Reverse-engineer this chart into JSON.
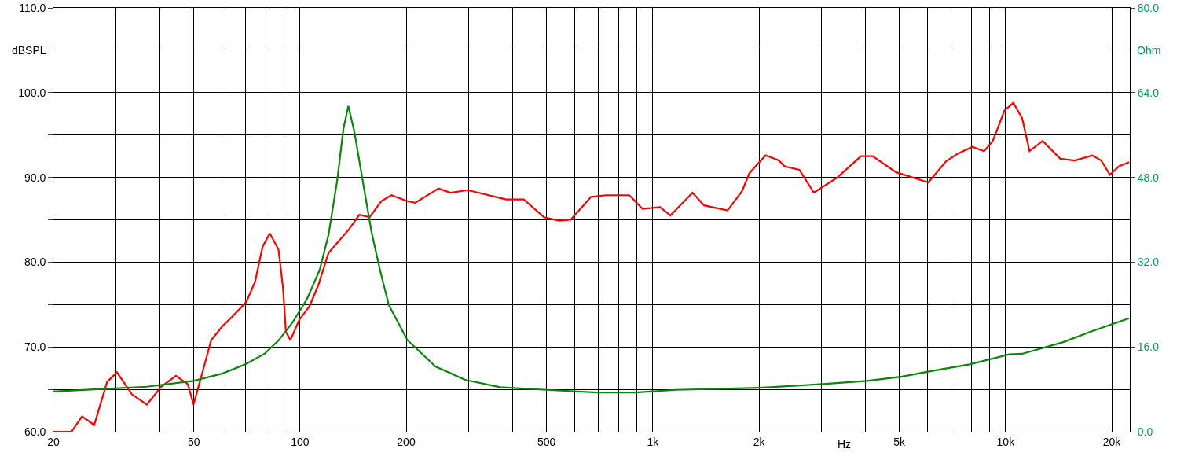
{
  "chart_data": {
    "type": "line",
    "xlabel": "Hz",
    "ylabel": "dBSPL",
    "y2label": "Ohm",
    "log": "x",
    "grid": true,
    "marker": "none",
    "line_style": "solid",
    "xlim": [
      20,
      22500
    ],
    "xticks": [
      20,
      {
        "value": 30,
        "label": null
      },
      {
        "value": 40,
        "label": null
      },
      50,
      {
        "value": 60,
        "label": null
      },
      {
        "value": 70,
        "label": null
      },
      {
        "value": 80,
        "label": null
      },
      {
        "value": 90,
        "label": null
      },
      100,
      200,
      {
        "value": 300,
        "label": null
      },
      {
        "value": 400,
        "label": null
      },
      500,
      {
        "value": 600,
        "label": null
      },
      {
        "value": 700,
        "label": null
      },
      {
        "value": 800,
        "label": null
      },
      {
        "value": 900,
        "label": null
      },
      {
        "value": 1000,
        "label": "1k"
      },
      {
        "value": 2000,
        "label": "2k"
      },
      {
        "value": 3000,
        "label": null
      },
      {
        "value": 4000,
        "label": null
      },
      {
        "value": 5000,
        "label": "5k"
      },
      {
        "value": 6000,
        "label": null
      },
      {
        "value": 7000,
        "label": null
      },
      {
        "value": 8000,
        "label": null
      },
      {
        "value": 9000,
        "label": null
      },
      {
        "value": 10000,
        "label": "10k"
      },
      {
        "value": 20000,
        "label": "20k"
      }
    ],
    "ylim": [
      60,
      110
    ],
    "yticks": [
      {
        "value": 60,
        "label": "60.0"
      },
      {
        "value": 65,
        "label": null
      },
      {
        "value": 70,
        "label": "70.0"
      },
      {
        "value": 75,
        "label": null
      },
      {
        "value": 80,
        "label": "80.0"
      },
      {
        "value": 85,
        "label": null
      },
      {
        "value": 90,
        "label": "90.0"
      },
      {
        "value": 95,
        "label": null
      },
      {
        "value": 100,
        "label": "100.0"
      },
      {
        "value": 105,
        "label": null
      },
      {
        "value": 110,
        "label": "110.0"
      }
    ],
    "y2lim": [
      0,
      80
    ],
    "y2ticks": [
      {
        "value": 0,
        "label": "0.0"
      },
      {
        "value": 16,
        "label": "16.0"
      },
      {
        "value": 32,
        "label": "32.0"
      },
      {
        "value": 48,
        "label": "48.0"
      },
      {
        "value": 64,
        "label": "64.0"
      },
      {
        "value": 80,
        "label": "80.0"
      }
    ],
    "series": [
      {
        "color": "#ff0000",
        "x": [
          20,
          22.5,
          24.1,
          26.1,
          28.4,
          30.3,
          33.4,
          36.8,
          40.4,
          44.5,
          48.1,
          49.9,
          52.9,
          56,
          60.4,
          64,
          70.4,
          74.6,
          78.3,
          82.1,
          86.9,
          89.5,
          91.2,
          93.9,
          99.5,
          106.4,
          112.7,
          120.5,
          137.8,
          147.3,
          157.5,
          170,
          181.6,
          201.6,
          212,
          247,
          267,
          299,
          384,
          431,
          492,
          542,
          585,
          668,
          736,
          858,
          935,
          1049,
          1122,
          1296,
          1397,
          1629,
          1791,
          1879,
          2088,
          2277,
          2364,
          2603,
          2862,
          3337,
          3890,
          4200,
          4898,
          6043,
          6780,
          7317,
          8053,
          8690,
          9200,
          9930,
          10520,
          11140,
          11690,
          12740,
          14290,
          15720,
          17620,
          18660,
          19760,
          20930,
          22400
        ],
        "values": [
          60,
          60,
          61.8,
          60.8,
          65.9,
          67.0,
          64.4,
          63.2,
          65.3,
          66.6,
          65.6,
          63.2,
          67.0,
          70.8,
          72.5,
          73.5,
          75.3,
          77.7,
          81.8,
          83.4,
          81.5,
          77.0,
          71.8,
          70.8,
          73.2,
          74.8,
          77.3,
          81.1,
          83.9,
          85.6,
          85.3,
          87.2,
          87.9,
          87.2,
          87.0,
          88.7,
          88.2,
          88.5,
          87.4,
          87.4,
          85.3,
          84.9,
          85.0,
          87.7,
          87.9,
          87.9,
          86.3,
          86.5,
          85.5,
          88.2,
          86.7,
          86.1,
          88.4,
          90.5,
          92.6,
          92.0,
          91.3,
          90.9,
          88.2,
          90.0,
          92.5,
          92.5,
          90.6,
          89.4,
          91.9,
          92.8,
          93.6,
          93.1,
          94.3,
          97.9,
          98.8,
          97.0,
          93.1,
          94.3,
          92.2,
          92.0,
          92.6,
          92.0,
          90.3,
          91.3,
          91.8
        ]
      },
      {
        "color": "#0a860a",
        "axis": "y2",
        "x": [
          20,
          26.1,
          36.8,
          49.9,
          60.4,
          70.4,
          79.3,
          86.9,
          95.2,
          104.6,
          113.7,
          120.5,
          127.6,
          132.7,
          137.1,
          142.7,
          150.8,
          159.5,
          168.6,
          178.6,
          201.6,
          242,
          294,
          369,
          501,
          695,
          891,
          1164,
          1991,
          2148,
          3034,
          4044,
          5093,
          6109,
          7907,
          10230,
          11140,
          14560,
          17620,
          22400
        ],
        "values": [
          7.6,
          8.0,
          8.5,
          9.6,
          11.0,
          12.8,
          14.7,
          17.2,
          20.6,
          25.0,
          30.5,
          37.2,
          47.6,
          57.1,
          61.5,
          56.5,
          47.1,
          37.7,
          30.5,
          23.9,
          17.3,
          12.3,
          9.8,
          8.4,
          7.9,
          7.4,
          7.4,
          7.9,
          8.3,
          8.4,
          9.0,
          9.6,
          10.4,
          11.4,
          12.7,
          14.6,
          14.7,
          16.9,
          19.0,
          21.4
        ]
      }
    ]
  }
}
